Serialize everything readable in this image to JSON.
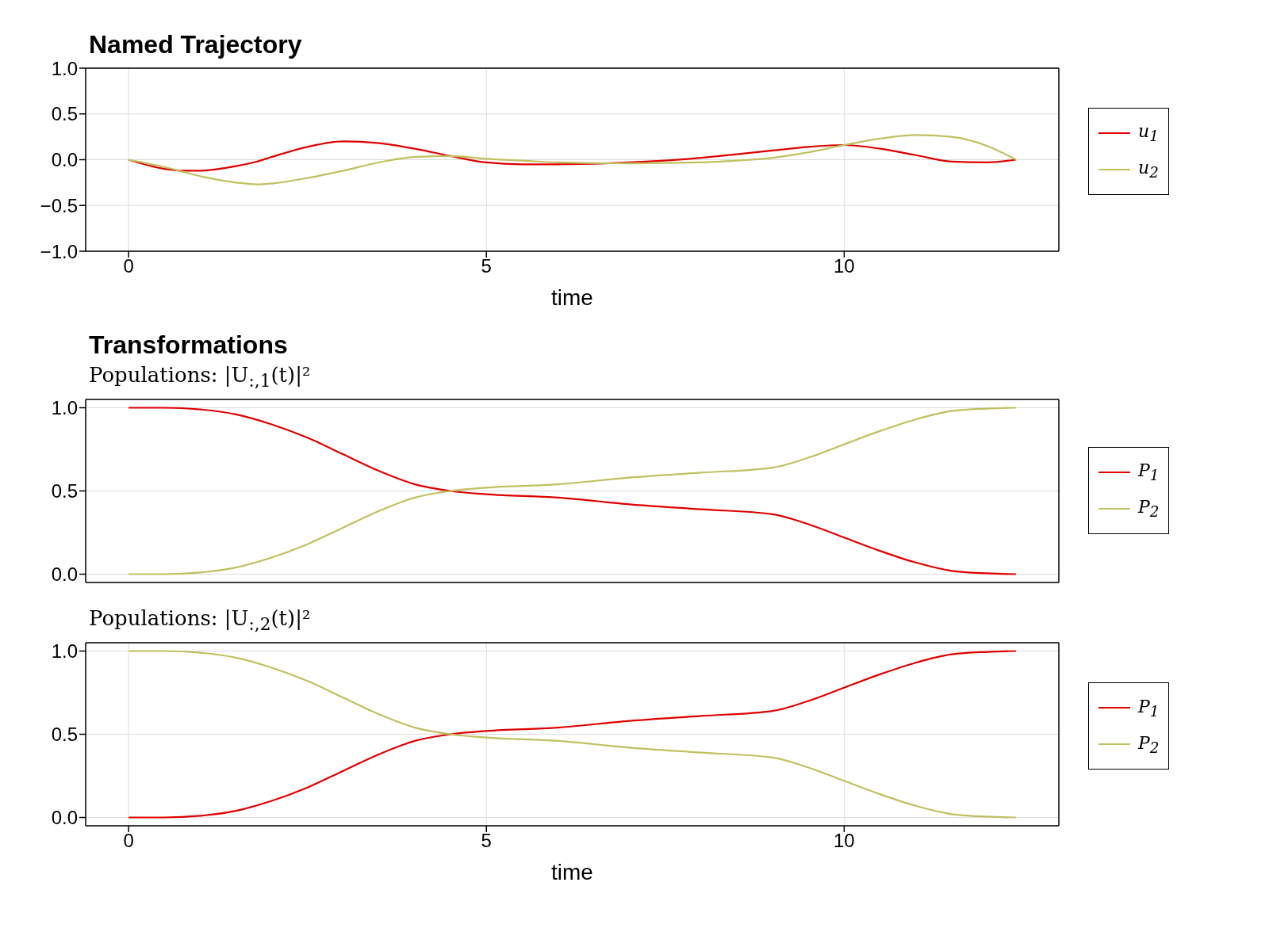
{
  "chart_data": [
    {
      "type": "line",
      "title": "Named Trajectory",
      "xlabel": "time",
      "x": [
        0,
        0.5,
        0.8,
        1,
        1.5,
        1.8,
        2,
        2.5,
        3,
        3.5,
        4,
        4.5,
        5,
        5.5,
        6,
        7,
        8,
        8.5,
        9,
        9.5,
        10,
        10.5,
        11,
        11.5,
        12,
        12.4
      ],
      "xlim": [
        -0.6,
        13
      ],
      "xticks": [
        0,
        5,
        10
      ],
      "ylim": [
        -1,
        1
      ],
      "yticks": [
        {
          "value": -1,
          "label": "−1.0"
        },
        {
          "value": -0.5,
          "label": "−0.5"
        },
        {
          "value": 0,
          "label": "0.0"
        },
        {
          "value": 0.5,
          "label": "0.5"
        },
        {
          "value": 1,
          "label": "1.0"
        }
      ],
      "grid": true,
      "legend": "right",
      "series": [
        {
          "name": "u$_{1}$",
          "color": "#e00000",
          "values": [
            0,
            -0.1,
            -0.12,
            -0.12,
            -0.07,
            -0.02,
            0.03,
            0.14,
            0.2,
            0.18,
            0.12,
            0.04,
            -0.03,
            -0.05,
            -0.05,
            -0.03,
            0.02,
            0.06,
            0.1,
            0.14,
            0.16,
            0.12,
            0.05,
            -0.02,
            -0.03,
            0
          ]
        },
        {
          "name": "u$_{2}$",
          "color": "#c0c060",
          "values": [
            0,
            -0.08,
            -0.14,
            -0.18,
            -0.25,
            -0.27,
            -0.26,
            -0.2,
            -0.12,
            -0.03,
            0.03,
            0.04,
            0.01,
            -0.01,
            -0.03,
            -0.04,
            -0.03,
            -0.01,
            0.02,
            0.08,
            0.16,
            0.23,
            0.27,
            0.25,
            0.15,
            0
          ]
        }
      ]
    },
    {
      "type": "line",
      "title": "Transformations",
      "subtitle": "Populations: |U$_{:,1}$(t)|²",
      "x": [
        0,
        0.5,
        1,
        1.5,
        2,
        2.5,
        3,
        3.5,
        4,
        4.5,
        5,
        6,
        7,
        8,
        9,
        9.5,
        10,
        10.5,
        11,
        11.5,
        12,
        12.4
      ],
      "xlim": [
        -0.6,
        13
      ],
      "xticks": [
        0,
        5,
        10
      ],
      "ylim": [
        -0.05,
        1.05
      ],
      "yticks": [
        {
          "value": 0,
          "label": "0.0"
        },
        {
          "value": 0.5,
          "label": "0.5"
        },
        {
          "value": 1,
          "label": "1.0"
        }
      ],
      "grid": true,
      "legend": "right",
      "tick_labels": "y",
      "series": [
        {
          "name": "P$_{1}$",
          "color": "#e00000",
          "values": [
            1,
            1,
            0.99,
            0.96,
            0.9,
            0.82,
            0.72,
            0.62,
            0.54,
            0.5,
            0.48,
            0.46,
            0.42,
            0.39,
            0.36,
            0.3,
            0.22,
            0.14,
            0.07,
            0.02,
            0.005,
            0
          ]
        },
        {
          "name": "P$_{2}$",
          "color": "#c0c060",
          "values": [
            0,
            0,
            0.01,
            0.04,
            0.1,
            0.18,
            0.28,
            0.38,
            0.46,
            0.5,
            0.52,
            0.54,
            0.58,
            0.61,
            0.64,
            0.7,
            0.78,
            0.86,
            0.93,
            0.98,
            0.995,
            1
          ]
        }
      ]
    },
    {
      "type": "line",
      "subtitle": "Populations: |U$_{:,2}$(t)|²",
      "xlabel": "time",
      "x": [
        0,
        0.5,
        1,
        1.5,
        2,
        2.5,
        3,
        3.5,
        4,
        4.5,
        5,
        6,
        7,
        8,
        9,
        9.5,
        10,
        10.5,
        11,
        11.5,
        12,
        12.4
      ],
      "xlim": [
        -0.6,
        13
      ],
      "xticks": [
        0,
        5,
        10
      ],
      "ylim": [
        -0.05,
        1.05
      ],
      "yticks": [
        {
          "value": 0,
          "label": "0.0"
        },
        {
          "value": 0.5,
          "label": "0.5"
        },
        {
          "value": 1,
          "label": "1.0"
        }
      ],
      "grid": true,
      "legend": "right",
      "series": [
        {
          "name": "P$_{1}$",
          "color": "#e00000",
          "values": [
            0,
            0,
            0.01,
            0.04,
            0.1,
            0.18,
            0.28,
            0.38,
            0.46,
            0.5,
            0.52,
            0.54,
            0.58,
            0.61,
            0.64,
            0.7,
            0.78,
            0.86,
            0.93,
            0.98,
            0.995,
            1
          ]
        },
        {
          "name": "P$_{2}$",
          "color": "#c0c060",
          "values": [
            1,
            1,
            0.99,
            0.96,
            0.9,
            0.82,
            0.72,
            0.62,
            0.54,
            0.5,
            0.48,
            0.46,
            0.42,
            0.39,
            0.36,
            0.3,
            0.22,
            0.14,
            0.07,
            0.02,
            0.005,
            0
          ]
        }
      ]
    }
  ]
}
